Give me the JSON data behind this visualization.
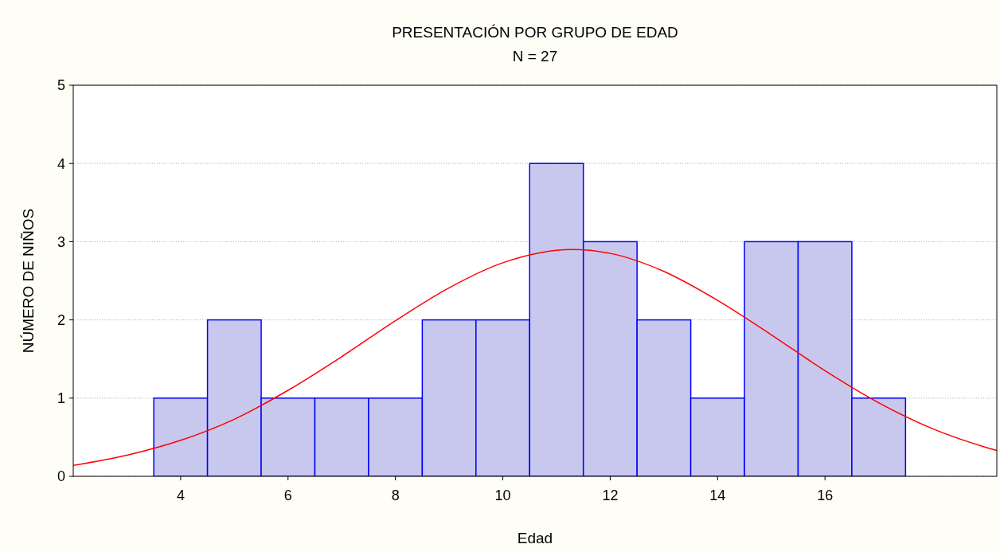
{
  "chart_data": {
    "type": "histogram",
    "title": "PRESENTACIÓN POR GRUPO DE EDAD",
    "subtitle": "N = 27",
    "xlabel": "Edad",
    "ylabel": "NÚMERO DE NIÑOS",
    "bins": [
      3.5,
      4.5,
      5.5,
      6.5,
      7.5,
      8.5,
      9.5,
      10.5,
      11.5,
      12.5,
      13.5,
      14.5,
      15.5,
      16.5,
      17.5
    ],
    "series": [
      {
        "color": "#c8c8ee",
        "values": [
          1,
          2,
          1,
          1,
          1,
          2,
          2,
          4,
          3,
          2,
          1,
          3,
          3,
          1
        ]
      },
      {
        "type": "line",
        "color": "#ff0000",
        "x": [
          2,
          3,
          4,
          5,
          6,
          7,
          8,
          9,
          10,
          11.3,
          12,
          13,
          14,
          15,
          16,
          17,
          18,
          19,
          19.2
        ],
        "values": [
          0.14,
          0.27,
          0.46,
          0.73,
          1.1,
          1.53,
          1.99,
          2.41,
          2.73,
          2.9,
          2.85,
          2.62,
          2.25,
          1.81,
          1.35,
          0.94,
          0.61,
          0.37,
          0.33
        ]
      }
    ],
    "xlim": [
      2,
      19.2
    ],
    "xticks": [
      4,
      6,
      8,
      10,
      12,
      14,
      16
    ],
    "ylim": [
      0,
      5
    ],
    "yticks": [
      0,
      1,
      2,
      3,
      4,
      5
    ],
    "grid": "y"
  }
}
